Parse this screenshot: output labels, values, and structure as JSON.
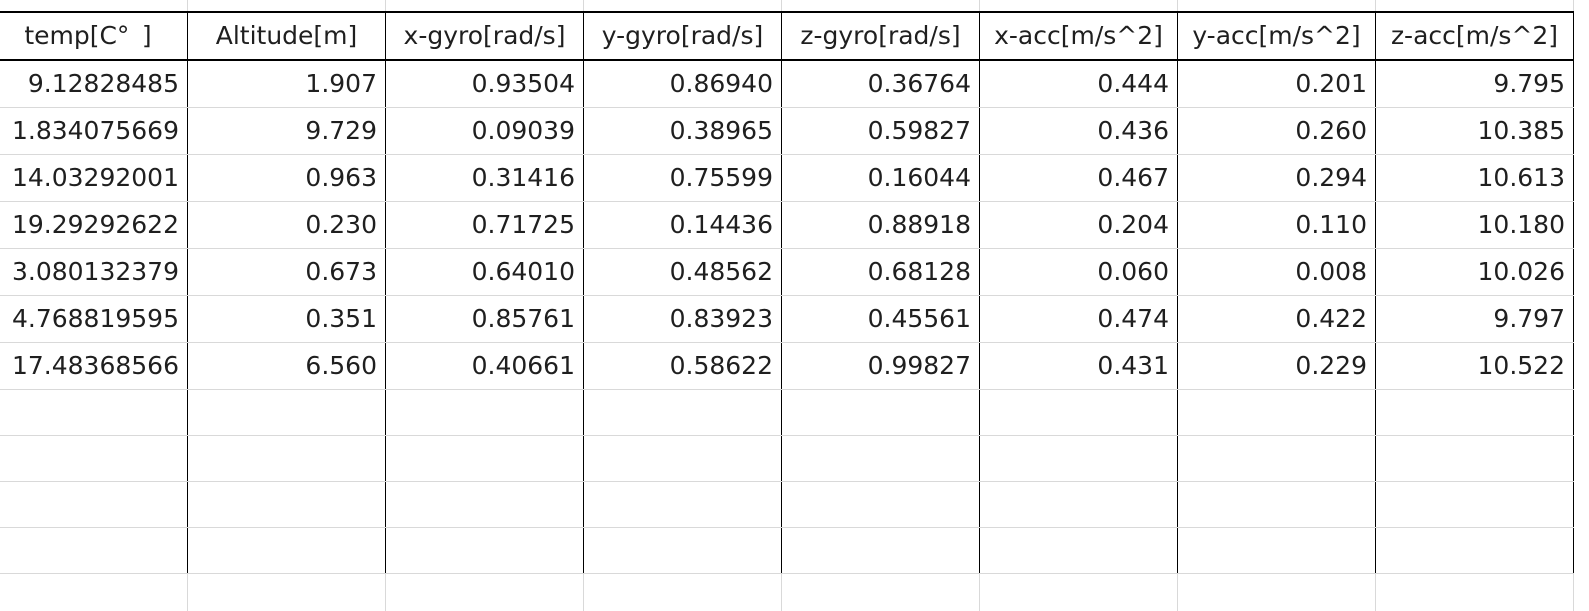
{
  "columns": [
    "temp[C° ]",
    "Altitude[m]",
    "x-gyro[rad/s]",
    "y-gyro[rad/s]",
    "z-gyro[rad/s]",
    "x-acc[m/s^2]",
    "y-acc[m/s^2]",
    "z-acc[m/s^2]"
  ],
  "rows": [
    [
      "9.12828485",
      "1.907",
      "0.93504",
      "0.86940",
      "0.36764",
      "0.444",
      "0.201",
      "9.795"
    ],
    [
      "1.834075669",
      "9.729",
      "0.09039",
      "0.38965",
      "0.59827",
      "0.436",
      "0.260",
      "10.385"
    ],
    [
      "14.03292001",
      "0.963",
      "0.31416",
      "0.75599",
      "0.16044",
      "0.467",
      "0.294",
      "10.613"
    ],
    [
      "19.29292622",
      "0.230",
      "0.71725",
      "0.14436",
      "0.88918",
      "0.204",
      "0.110",
      "10.180"
    ],
    [
      "3.080132379",
      "0.673",
      "0.64010",
      "0.48562",
      "0.68128",
      "0.060",
      "0.008",
      "10.026"
    ],
    [
      "4.768819595",
      "0.351",
      "0.85761",
      "0.83923",
      "0.45561",
      "0.474",
      "0.422",
      "9.797"
    ],
    [
      "17.48368566",
      "6.560",
      "0.40661",
      "0.58622",
      "0.99827",
      "0.431",
      "0.229",
      "10.522"
    ]
  ],
  "grid_colors": {
    "cell_border": "#d9d9d9",
    "table_border": "#000000",
    "text": "#1f1f1f",
    "background": "#ffffff"
  }
}
